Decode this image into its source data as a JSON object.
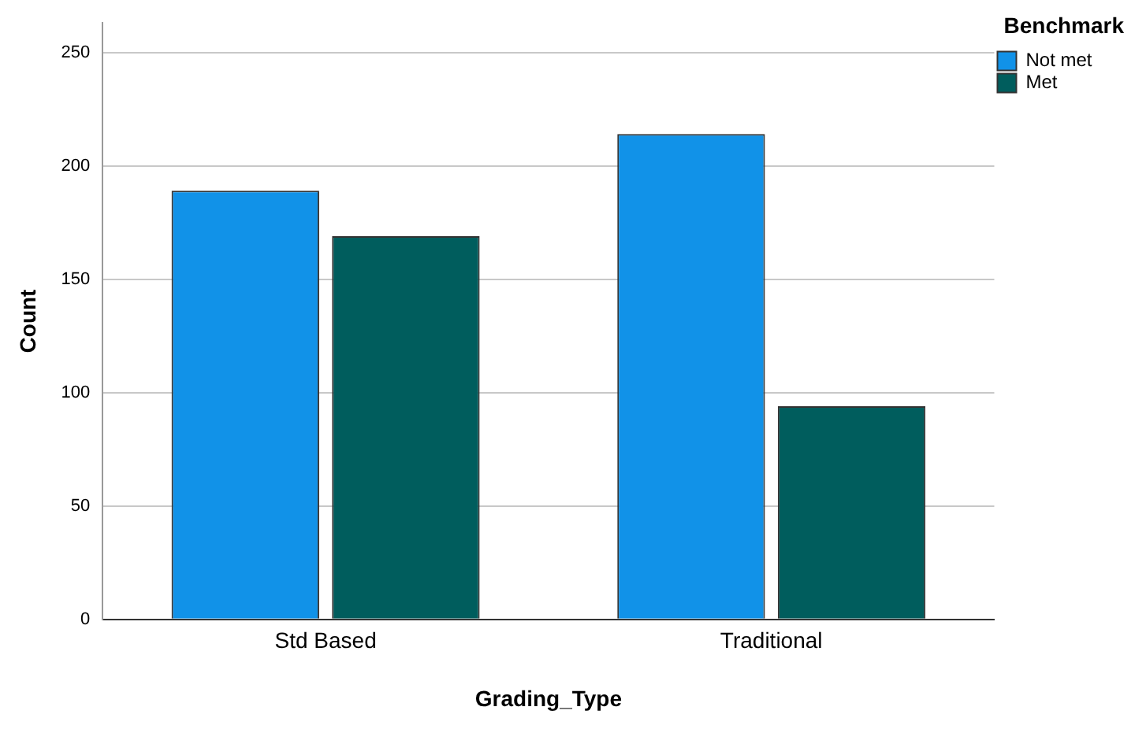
{
  "chart_data": {
    "type": "bar",
    "xlabel": "Grading_Type",
    "ylabel": "Count",
    "legend_title": "Benchmark",
    "categories": [
      "Std Based",
      "Traditional"
    ],
    "series": [
      {
        "name": "Not met",
        "color": "#1192e8",
        "values": [
          189,
          214
        ]
      },
      {
        "name": "Met",
        "color": "#005d5d",
        "values": [
          169,
          94
        ]
      }
    ],
    "ylim": [
      0,
      263
    ],
    "yticks": [
      0,
      50,
      100,
      150,
      200,
      250
    ],
    "grid": "y",
    "legend": "top right"
  }
}
